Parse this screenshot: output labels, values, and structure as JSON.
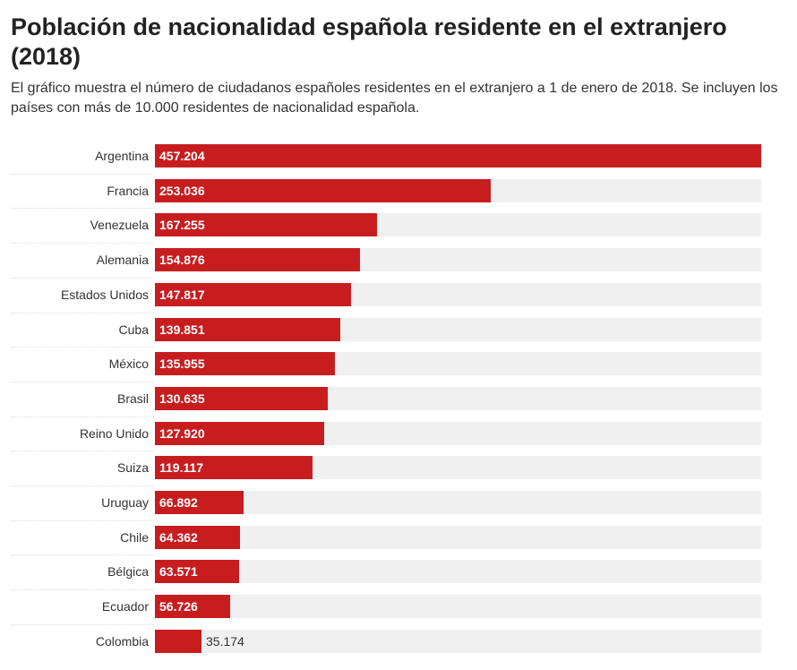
{
  "title": "Población de nacionalidad española residente en el extranjero (2018)",
  "subtitle": "El gráfico muestra el número de ciudadanos españoles residentes en el extranjero a 1 de enero de 2018. Se incluyen los países con más de 10.000 residentes de nacionalidad española.",
  "colors": {
    "bar": "#c81d1f",
    "track": "#f0f0f0"
  },
  "chart_data": {
    "type": "bar",
    "orientation": "horizontal",
    "categories": [
      "Argentina",
      "Francia",
      "Venezuela",
      "Alemania",
      "Estados Unidos",
      "Cuba",
      "México",
      "Brasil",
      "Reino Unido",
      "Suiza",
      "Uruguay",
      "Chile",
      "Bélgica",
      "Ecuador",
      "Colombia"
    ],
    "values": [
      457204,
      253036,
      167255,
      154876,
      147817,
      139851,
      135955,
      130635,
      127920,
      119117,
      66892,
      64362,
      63571,
      56726,
      35174
    ],
    "labels": [
      "457.204",
      "253.036",
      "167.255",
      "154.876",
      "147.817",
      "139.851",
      "135.955",
      "130.635",
      "127.920",
      "119.117",
      "66.892",
      "64.362",
      "63.571",
      "56.726",
      "35.174"
    ],
    "xlim": [
      0,
      457204
    ]
  }
}
